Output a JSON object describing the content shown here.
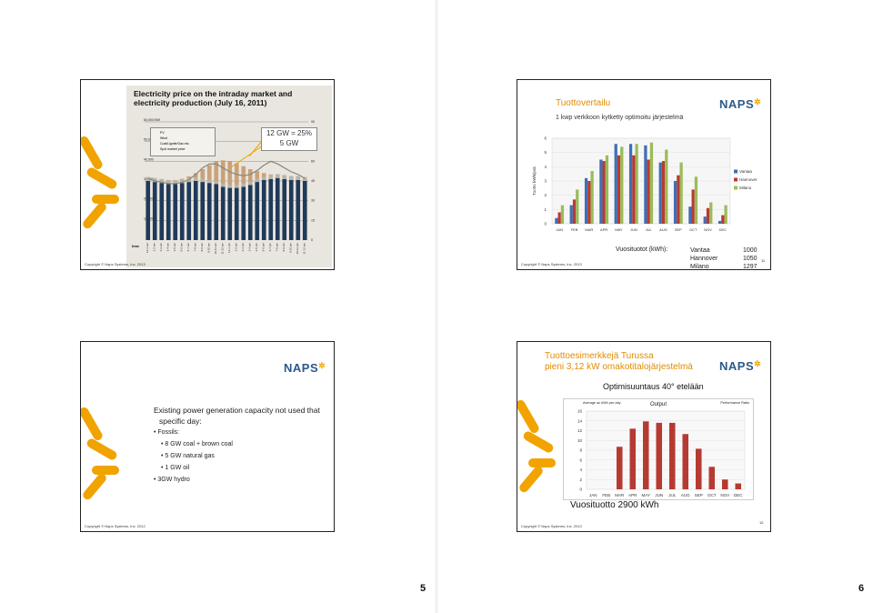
{
  "pages": {
    "left_number": "5",
    "right_number": "6"
  },
  "copyright": {
    "slide1": "Copyright © Naps Systems, Inc. 2013",
    "slide2": "Copyright © Naps Systems, Inc. 2013",
    "slide3": "Copyright © Naps Systems, Inc. 2012",
    "slide4": "Copyright © Naps Systems, Inc. 2013"
  },
  "slide1": {
    "title_line1": "Electricity price on the intraday market and",
    "title_line2": "electricity production (July 16, 2011)",
    "annotation_line1": "12 GW = 25%",
    "annotation_line2": "5 GW",
    "legend": [
      "PV",
      "Wind",
      "Coal/Lignite/Gas etc.",
      "Spot market price"
    ],
    "chart_data": {
      "type": "bar",
      "title": "Electricity price on the intraday market and electricity production (July 16, 2011)",
      "xlabel": "time",
      "ylabel_left": "MW",
      "ylabel_right": "€/1,000 kWh",
      "y_ticks_left": [
        "60,000 MW",
        "50,000",
        "40,000",
        "30,000",
        "20,000",
        "10,000"
      ],
      "y_ticks_right": [
        "90",
        "75",
        "60",
        "45",
        "30",
        "15",
        "0"
      ],
      "ylim_left": [
        0,
        60000
      ],
      "ylim_right": [
        0,
        90
      ],
      "categories": [
        "12-1 am",
        "1-2 am",
        "2-3 am",
        "3-4 am",
        "4-5 am",
        "5-6 am",
        "6-7 am",
        "7-8 am",
        "8-9 am",
        "9-10 am",
        "10-11 am",
        "11-12 pm",
        "12-1 pm",
        "1-2 pm",
        "2-3 pm",
        "3-4 pm",
        "4-5 pm",
        "5-6 pm",
        "6-7 pm",
        "7-8 pm",
        "8-9 pm",
        "9-10 pm",
        "10-11 pm",
        "11-12 am"
      ],
      "series": [
        {
          "name": "Coal/Lignite/Gas etc.",
          "values": [
            30000,
            29500,
            29000,
            28500,
            28500,
            29000,
            29500,
            30000,
            29500,
            29000,
            28500,
            27000,
            26500,
            26500,
            27000,
            28000,
            29500,
            30500,
            31000,
            31500,
            31000,
            30500,
            30500,
            30000
          ]
        },
        {
          "name": "Wind",
          "values": [
            2000,
            2000,
            2000,
            2000,
            2000,
            2000,
            1800,
            1500,
            1500,
            1500,
            1500,
            1500,
            1500,
            1500,
            1500,
            1500,
            1500,
            1500,
            1800,
            2000,
            2000,
            2000,
            2000,
            2000
          ]
        },
        {
          "name": "PV",
          "values": [
            0,
            0,
            0,
            0,
            0,
            200,
            1000,
            2500,
            5000,
            7500,
            10000,
            12000,
            12000,
            11000,
            9000,
            6500,
            4000,
            2000,
            500,
            0,
            0,
            0,
            0,
            0
          ]
        },
        {
          "name": "Spot market price",
          "values": [
            47,
            45,
            44,
            43,
            43,
            44,
            46,
            50,
            55,
            58,
            58,
            55,
            52,
            50,
            49,
            50,
            53,
            57,
            60,
            58,
            55,
            52,
            50,
            47
          ]
        }
      ]
    }
  },
  "slide2": {
    "title": "Tuottovertailu",
    "subtitle": "1 kwp verkkoon kytketty optimoitu järjestelmä",
    "logo": "NAPS",
    "annual_label": "Vuosituotot (kWh):",
    "annual": [
      {
        "city": "Vantaa",
        "kwh": "1000"
      },
      {
        "city": "Hannover",
        "kwh": "1050"
      },
      {
        "city": "Milano",
        "kwh": "1297"
      }
    ],
    "slide_no": "11",
    "chart_data": {
      "type": "bar",
      "ylabel": "Tuotto kWh/pvä",
      "ylim": [
        0,
        6
      ],
      "y_ticks": [
        "0",
        "1",
        "2",
        "3",
        "4",
        "5",
        "6"
      ],
      "categories": [
        "JAN",
        "FEB",
        "MAR",
        "APR",
        "MAY",
        "JUN",
        "JUL",
        "AUG",
        "SEP",
        "OCT",
        "NOV",
        "DEC"
      ],
      "series": [
        {
          "name": "Vantaa",
          "color": "#3f6fb5",
          "values": [
            0.4,
            1.3,
            3.2,
            4.5,
            5.6,
            5.6,
            5.5,
            4.3,
            3.0,
            1.2,
            0.5,
            0.2
          ]
        },
        {
          "name": "Hannover",
          "color": "#b93a32",
          "values": [
            0.8,
            1.7,
            3.0,
            4.4,
            4.8,
            4.8,
            4.5,
            4.4,
            3.4,
            2.4,
            1.1,
            0.6
          ]
        },
        {
          "name": "Milano",
          "color": "#9bbb59",
          "values": [
            1.3,
            2.4,
            3.7,
            4.8,
            5.4,
            5.6,
            5.7,
            5.2,
            4.3,
            3.3,
            1.5,
            1.3
          ]
        }
      ],
      "legend_position": "right"
    }
  },
  "slide3": {
    "logo": "NAPS",
    "intro_line1": "Existing power generation capacity not used that",
    "intro_line2": "specific day:",
    "bullet_fossils": "Fossils:",
    "sub_items": [
      "8 GW coal + brown coal",
      "5 GW natural gas",
      "1 GW oil"
    ],
    "hydro": "3GW hydro"
  },
  "slide4": {
    "title_line1": "Tuottoesimerkkejä Turussa",
    "title_line2": "pieni 3,12 kW omakotitalojärjestelmä",
    "logo": "NAPS",
    "orientation": "Optimisuuntaus 40° etelään",
    "chart_heading_left": "Average ac kWh per day",
    "chart_heading_center": "Output",
    "chart_heading_right": "Performance Ratio",
    "annual_total": "Vuosituotto 2900 kWh",
    "slide_no": "12",
    "chart_data": {
      "type": "bar",
      "title": "Output",
      "ylim": [
        0,
        16
      ],
      "y_ticks": [
        "0",
        "2",
        "4",
        "6",
        "8",
        "10",
        "12",
        "14",
        "16"
      ],
      "categories": [
        "JAN",
        "FEB",
        "MAR",
        "APR",
        "MAY",
        "JUN",
        "JUL",
        "AUG",
        "SEP",
        "OCT",
        "NOV",
        "DEC"
      ],
      "series": [
        {
          "name": "Output",
          "color": "#b53a32",
          "values": [
            0,
            0,
            8.7,
            12.4,
            13.9,
            13.6,
            13.6,
            11.3,
            8.3,
            4.6,
            2.0,
            1.2
          ]
        }
      ]
    }
  }
}
